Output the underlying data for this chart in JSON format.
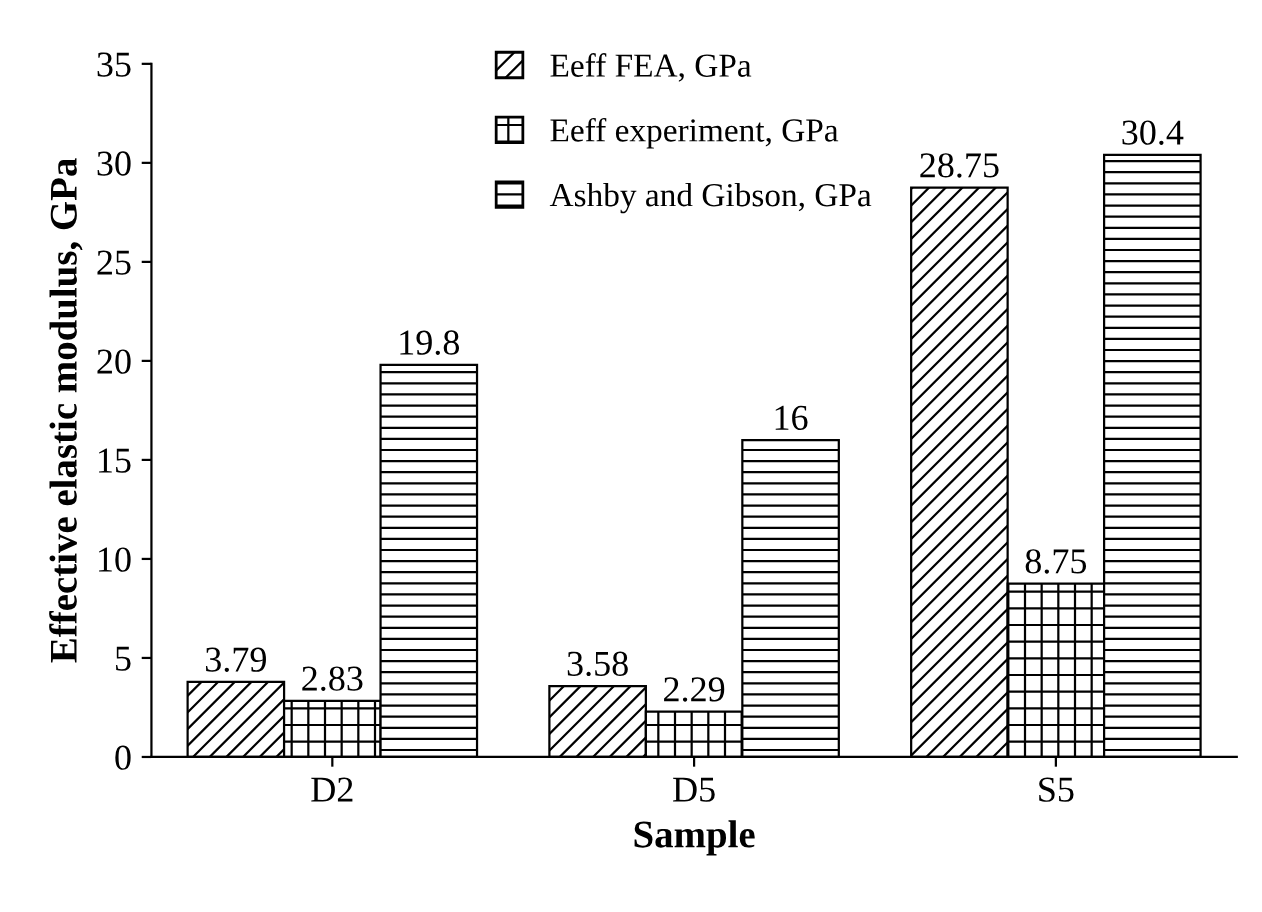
{
  "chart_data": {
    "type": "bar",
    "xlabel": "Sample",
    "ylabel": "Effective elastic modulus, GPa",
    "categories": [
      "D2",
      "D5",
      "S5"
    ],
    "series": [
      {
        "name": "Eeff FEA, GPa",
        "color": "#000000",
        "values": [
          3.79,
          3.58,
          28.75
        ]
      },
      {
        "name": "Eeff experiment, GPa",
        "color": "#000000",
        "values": [
          2.83,
          2.29,
          8.75
        ]
      },
      {
        "name": "Ashby and Gibson, GPa",
        "color": "#000000",
        "values": [
          19.8,
          16,
          30.4
        ]
      }
    ],
    "ylim": [
      0,
      35
    ],
    "yticks": [
      0,
      5,
      10,
      15,
      20,
      25,
      30,
      35
    ],
    "grid": false,
    "legend": "top",
    "data_labels": true
  }
}
